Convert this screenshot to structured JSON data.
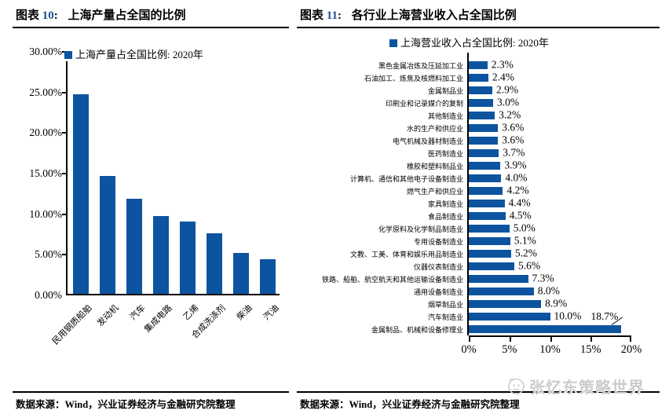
{
  "left_panel": {
    "header": {
      "prefix": "图表",
      "number": "10",
      "colon": ":",
      "title": "上海产量占全国的比例"
    },
    "source": "数据来源：Wind，兴业证券经济与金融研究院整理"
  },
  "right_panel": {
    "header": {
      "prefix": "图表",
      "number": "11",
      "colon": ":",
      "title": "各行业上海营业收入占全国比例"
    },
    "source": "数据来源：Wind，兴业证券经济与金融研究院整理"
  },
  "watermark": {
    "icon": "smiley-logo-icon",
    "text": "张忆东策略世界"
  },
  "colors": {
    "bar_blue": "#0D54A0",
    "header_number_blue": "#1F4E94",
    "watermark_gray": "#cccccc"
  },
  "chart_data": [
    {
      "type": "bar",
      "orientation": "vertical",
      "title": "上海产量占全国比例: 2020年",
      "legend_position": "top-left",
      "categories": [
        "民用钢质船舶",
        "发动机",
        "汽车",
        "集成电路",
        "乙烯",
        "合成洗涤剂",
        "柴油",
        "汽油"
      ],
      "values": [
        24.6,
        14.5,
        11.7,
        9.6,
        8.9,
        7.5,
        5.0,
        4.3
      ],
      "unit": "%",
      "ylim": [
        0,
        30
      ],
      "ytick_step": 5,
      "yticks": [
        "30.00%",
        "25.00%",
        "20.00%",
        "15.00%",
        "10.00%",
        "5.00%",
        "0.00%"
      ],
      "grid": false
    },
    {
      "type": "bar",
      "orientation": "horizontal",
      "title": "上海营业收入占全国比例: 2020年",
      "legend_position": "top-center",
      "categories": [
        "黑色金属冶炼及压延加工业",
        "石油加工、炼焦及核燃料加工业",
        "金属制品业",
        "印刷业和记录媒介的复制",
        "其他制造业",
        "水的生产和供应业",
        "电气机械及器材制造业",
        "医药制造业",
        "橡胶和塑料制品业",
        "计算机、通信和其他电子设备制造业",
        "燃气生产和供应业",
        "家具制造业",
        "食品制造业",
        "化学原料及化学制品制造业",
        "专用设备制造业",
        "文教、工美、体育和娱乐用品制造业",
        "仪器仪表制造业",
        "铁路、船舶、航空航天和其他运输设备制造业",
        "通用设备制造业",
        "烟草制品业",
        "汽车制造业",
        "金属制品、机械和设备修理业"
      ],
      "values": [
        2.3,
        2.4,
        2.9,
        3.0,
        3.2,
        3.6,
        3.6,
        3.7,
        3.9,
        4.0,
        4.2,
        4.4,
        4.5,
        5.0,
        5.1,
        5.2,
        5.6,
        7.3,
        8.0,
        8.9,
        10.0,
        18.7
      ],
      "data_labels": [
        "2.3%",
        "2.4%",
        "2.9%",
        "3.0%",
        "3.2%",
        "3.6%",
        "3.6%",
        "3.7%",
        "3.9%",
        "4.0%",
        "4.2%",
        "4.4%",
        "4.5%",
        "5.0%",
        "5.1%",
        "5.2%",
        "5.6%",
        "7.3%",
        "8.0%",
        "8.9%",
        "10.0%",
        "18.7%"
      ],
      "unit": "%",
      "xlim": [
        0,
        20
      ],
      "xticks": [
        "0%",
        "5%",
        "10%",
        "15%",
        "20%"
      ],
      "grid": false
    }
  ]
}
